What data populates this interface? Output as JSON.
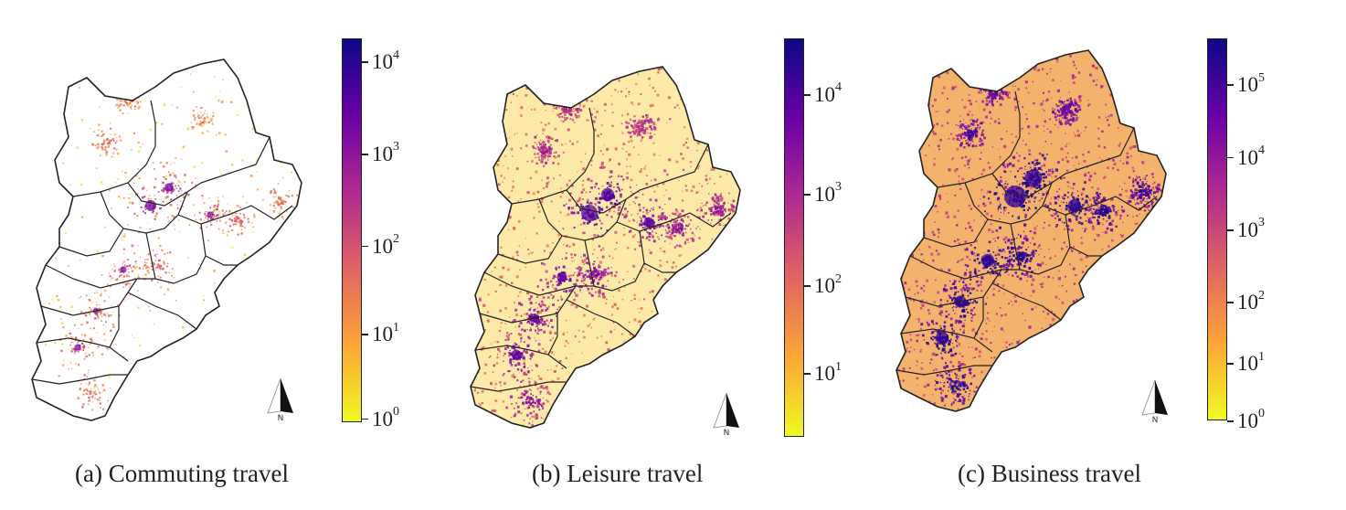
{
  "colormap": {
    "name": "plasma_r",
    "stops": [
      "#f0f921",
      "#fca636",
      "#e16462",
      "#b12a90",
      "#6a00a8",
      "#0d0887"
    ]
  },
  "panels": [
    {
      "id": "a",
      "caption": "(a) Commuting travel",
      "colorbar_ticks": [
        {
          "base": "10",
          "exp": "4"
        },
        {
          "base": "10",
          "exp": "3"
        },
        {
          "base": "10",
          "exp": "2"
        },
        {
          "base": "10",
          "exp": "1"
        },
        {
          "base": "10",
          "exp": "0"
        }
      ],
      "density": "low",
      "north_label": "N"
    },
    {
      "id": "b",
      "caption": "(b) Leisure travel",
      "colorbar_ticks": [
        {
          "base": "10",
          "exp": "4"
        },
        {
          "base": "10",
          "exp": "3"
        },
        {
          "base": "10",
          "exp": "2"
        },
        {
          "base": "10",
          "exp": "1"
        }
      ],
      "density": "medium",
      "north_label": "N"
    },
    {
      "id": "c",
      "caption": "(c) Business travel",
      "colorbar_ticks": [
        {
          "base": "10",
          "exp": "5"
        },
        {
          "base": "10",
          "exp": "4"
        },
        {
          "base": "10",
          "exp": "3"
        },
        {
          "base": "10",
          "exp": "2"
        },
        {
          "base": "10",
          "exp": "1"
        },
        {
          "base": "10",
          "exp": "0"
        }
      ],
      "density": "high",
      "north_label": "N"
    }
  ]
}
